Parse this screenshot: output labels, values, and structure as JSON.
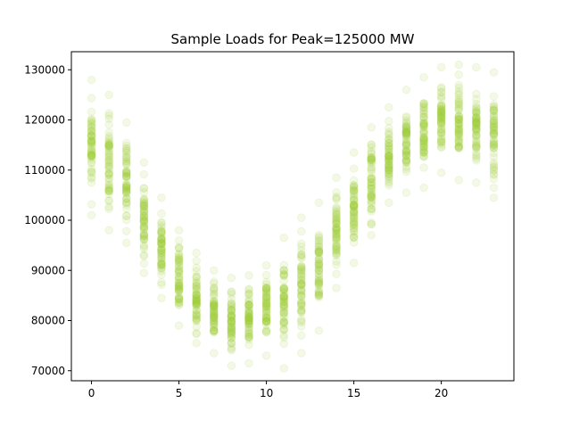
{
  "chart_data": {
    "type": "scatter",
    "title": "Sample Loads for Peak=125000 MW",
    "xlabel": "",
    "ylabel": "",
    "xlim": [
      -1.15,
      24.15
    ],
    "ylim": [
      68000,
      133600
    ],
    "x_ticks": [
      0,
      5,
      10,
      15,
      20
    ],
    "y_ticks": [
      70000,
      80000,
      90000,
      100000,
      110000,
      120000,
      130000
    ],
    "x_tick_labels": [
      "0",
      "5",
      "10",
      "15",
      "20"
    ],
    "y_tick_labels": [
      "70000",
      "80000",
      "90000",
      "100000",
      "110000",
      "120000",
      "130000"
    ],
    "grid": false,
    "legend": "none",
    "marker_color": "#9acd32",
    "marker_alpha": 0.12,
    "hours": [
      0,
      1,
      2,
      3,
      4,
      5,
      6,
      7,
      8,
      9,
      10,
      11,
      12,
      13,
      14,
      15,
      16,
      17,
      18,
      19,
      20,
      21,
      22,
      23
    ],
    "hour_ranges": [
      [
        101000,
        128000
      ],
      [
        98000,
        125000
      ],
      [
        95500,
        119500
      ],
      [
        89500,
        111500
      ],
      [
        84500,
        104500
      ],
      [
        79000,
        98000
      ],
      [
        75500,
        93500
      ],
      [
        73500,
        90000
      ],
      [
        71000,
        88500
      ],
      [
        71500,
        89000
      ],
      [
        73000,
        91000
      ],
      [
        70500,
        96500
      ],
      [
        73500,
        100500
      ],
      [
        78000,
        103500
      ],
      [
        86500,
        108500
      ],
      [
        91500,
        113500
      ],
      [
        97000,
        118500
      ],
      [
        103500,
        122500
      ],
      [
        105500,
        126000
      ],
      [
        106500,
        128500
      ],
      [
        109500,
        130500
      ],
      [
        108000,
        131000
      ],
      [
        107500,
        130500
      ],
      [
        104500,
        129500
      ]
    ],
    "points_per_hour": 60
  }
}
